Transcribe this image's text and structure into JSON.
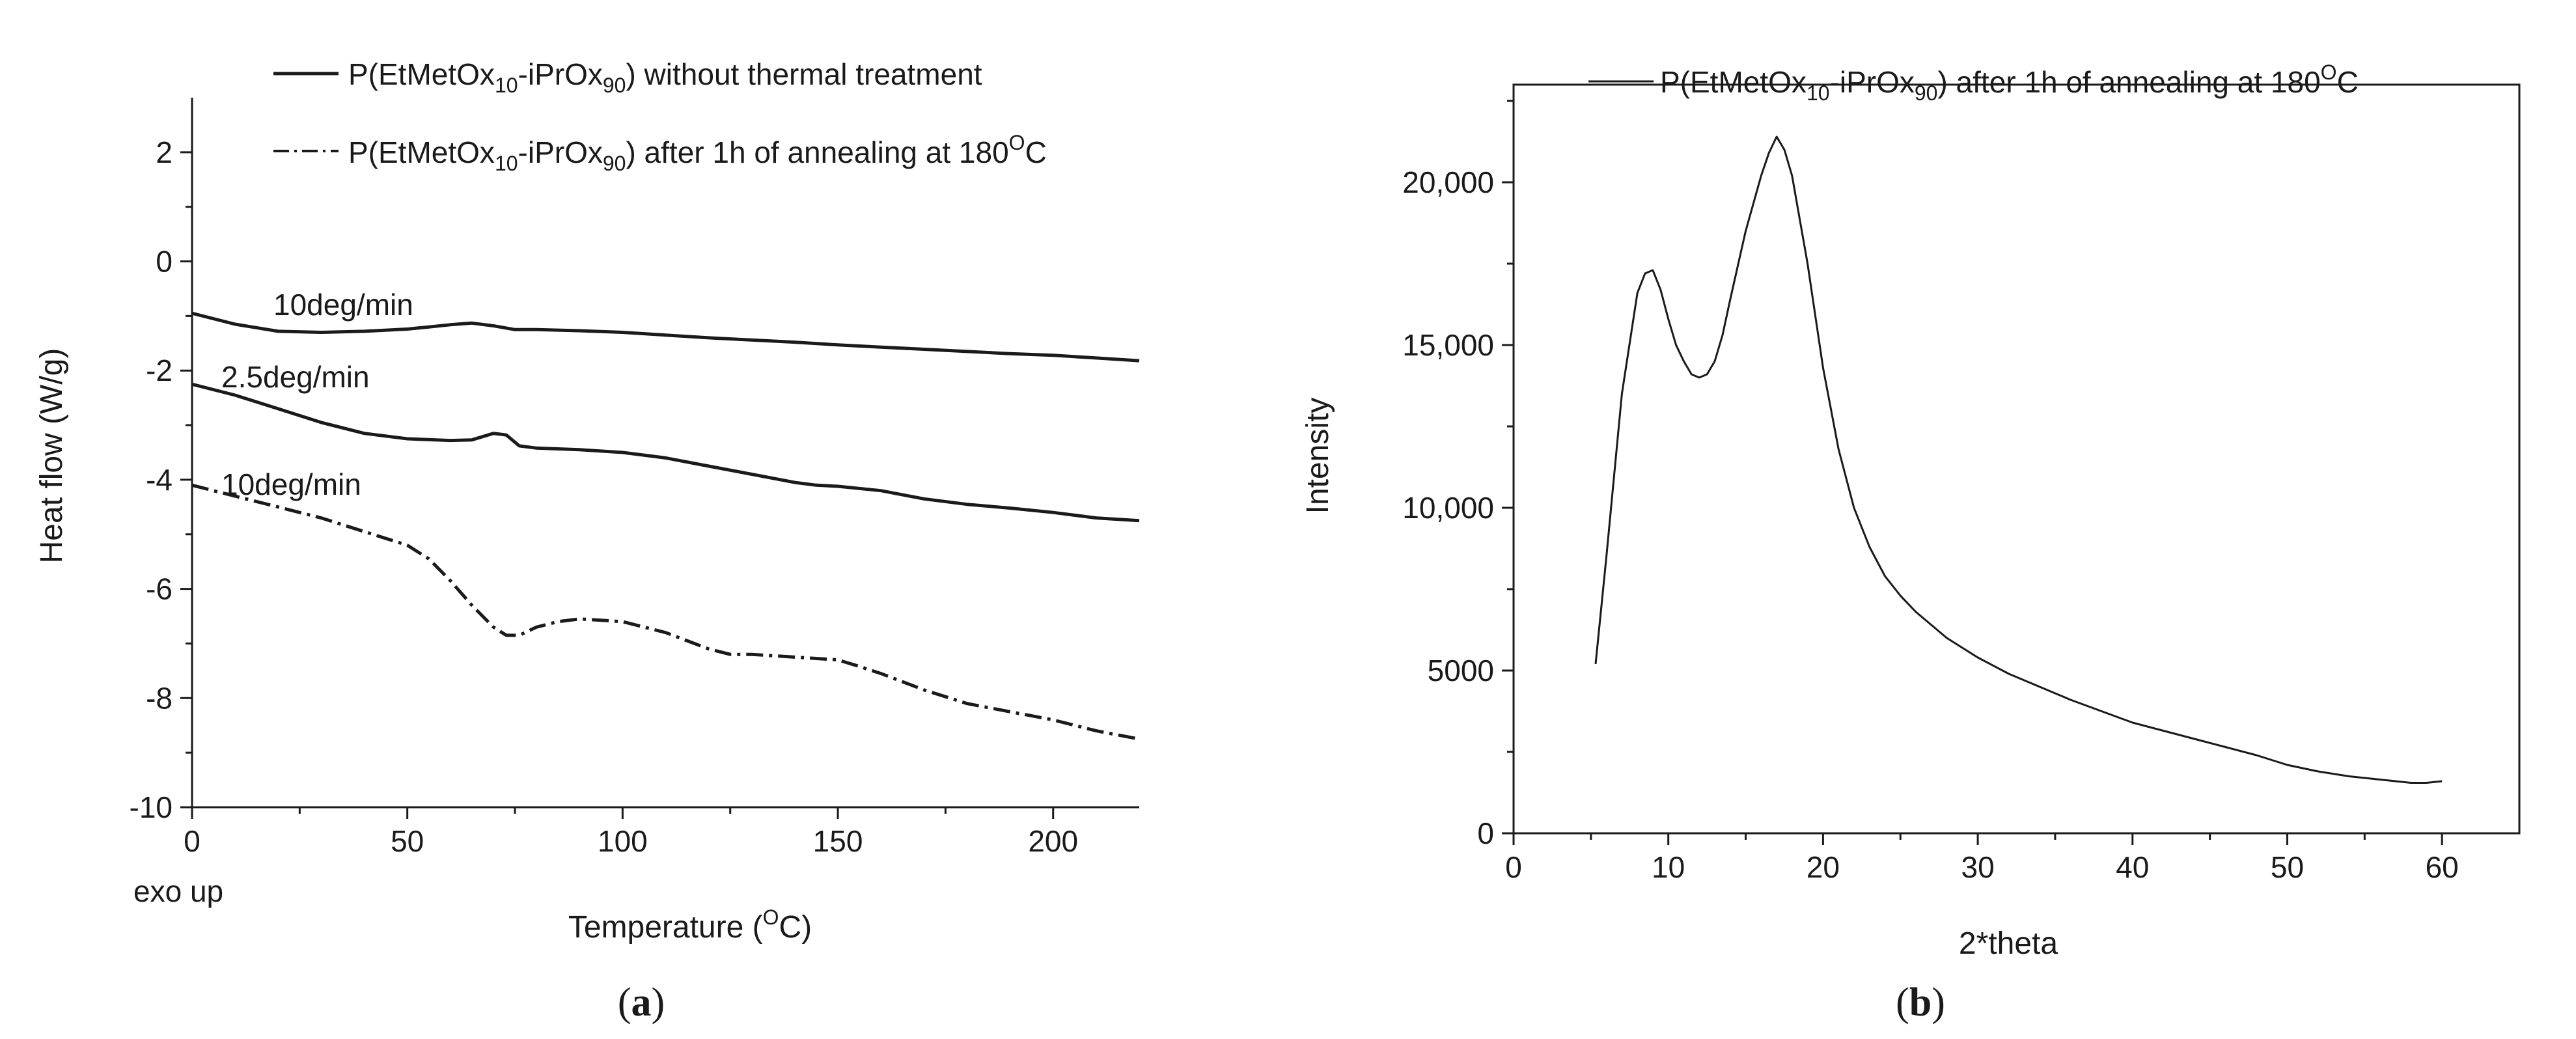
{
  "chart_data": [
    {
      "panel": "(a)",
      "panel_letter": "a",
      "type": "line",
      "xlabel": "Temperature (°C)",
      "xlabel_parts": {
        "pre": "Temperature (",
        "sup": "O",
        "post": "C)"
      },
      "ylabel": "Heat flow (W/g)",
      "xlim": [
        0,
        220
      ],
      "ylim": [
        -10,
        3
      ],
      "xticks": [
        0,
        50,
        100,
        150,
        200
      ],
      "xtick_labels": [
        "0",
        "50",
        "100",
        "150",
        "200"
      ],
      "yticks": [
        -10,
        -8,
        -6,
        -4,
        -2,
        0,
        2
      ],
      "ytick_labels": [
        "-10",
        "-8",
        "-6",
        "-4",
        "-2",
        "0",
        "2"
      ],
      "grid": false,
      "legend_placement": "top",
      "note": "exo up",
      "legend": [
        {
          "style": "solid",
          "pre": "P(EtMetOx",
          "sub1": "10",
          "mid": "-iPrOx",
          "sub2": "90",
          "post": ") without thermal treatment",
          "sup": "",
          "end": ""
        },
        {
          "style": "dashdot",
          "pre": "P(EtMetOx",
          "sub1": "10",
          "mid": "-iPrOx",
          "sub2": "90",
          "post": ") after 1h of annealing at 180",
          "sup": "O",
          "end": "C"
        }
      ],
      "series": [
        {
          "name": "10deg/min (without thermal treatment)",
          "label": "10deg/min",
          "style": "solid",
          "x": [
            0,
            10,
            20,
            30,
            40,
            50,
            55,
            60,
            65,
            70,
            75,
            80,
            90,
            100,
            110,
            120,
            130,
            140,
            150,
            160,
            170,
            180,
            190,
            200,
            210,
            220
          ],
          "y": [
            -0.95,
            -1.15,
            -1.28,
            -1.3,
            -1.28,
            -1.24,
            -1.2,
            -1.16,
            -1.13,
            -1.18,
            -1.25,
            -1.25,
            -1.27,
            -1.3,
            -1.35,
            -1.4,
            -1.44,
            -1.48,
            -1.53,
            -1.57,
            -1.61,
            -1.65,
            -1.69,
            -1.72,
            -1.77,
            -1.82
          ]
        },
        {
          "name": "2.5deg/min (without thermal treatment)",
          "label": "2.5deg/min",
          "style": "solid",
          "x": [
            0,
            10,
            20,
            30,
            40,
            50,
            60,
            65,
            70,
            73,
            76,
            80,
            90,
            100,
            110,
            120,
            130,
            140,
            145,
            150,
            160,
            170,
            180,
            190,
            200,
            210,
            220
          ],
          "y": [
            -2.25,
            -2.45,
            -2.7,
            -2.95,
            -3.15,
            -3.25,
            -3.28,
            -3.27,
            -3.15,
            -3.18,
            -3.38,
            -3.42,
            -3.45,
            -3.5,
            -3.6,
            -3.75,
            -3.9,
            -4.05,
            -4.1,
            -4.12,
            -4.2,
            -4.35,
            -4.45,
            -4.52,
            -4.6,
            -4.7,
            -4.75
          ]
        },
        {
          "name": "10deg/min (after 1h of annealing at 180°C)",
          "label": "10deg/min",
          "style": "dashdot",
          "x": [
            0,
            10,
            20,
            30,
            40,
            50,
            55,
            60,
            65,
            70,
            73,
            76,
            80,
            85,
            90,
            100,
            110,
            120,
            125,
            130,
            140,
            150,
            155,
            160,
            170,
            180,
            190,
            200,
            210,
            220
          ],
          "y": [
            -4.1,
            -4.3,
            -4.5,
            -4.7,
            -4.95,
            -5.2,
            -5.45,
            -5.85,
            -6.3,
            -6.7,
            -6.85,
            -6.85,
            -6.7,
            -6.6,
            -6.55,
            -6.6,
            -6.8,
            -7.1,
            -7.2,
            -7.2,
            -7.25,
            -7.3,
            -7.42,
            -7.55,
            -7.85,
            -8.1,
            -8.25,
            -8.4,
            -8.6,
            -8.75
          ]
        }
      ]
    },
    {
      "panel": "(b)",
      "panel_letter": "b",
      "type": "line",
      "xlabel": "2*theta",
      "ylabel": "Intensity",
      "xlim": [
        0,
        65
      ],
      "ylim": [
        0,
        23000
      ],
      "xticks": [
        0,
        10,
        20,
        30,
        40,
        50,
        60
      ],
      "xtick_labels": [
        "0",
        "10",
        "20",
        "30",
        "40",
        "50",
        "60"
      ],
      "yticks": [
        0,
        5000,
        10000,
        15000,
        20000
      ],
      "ytick_labels": [
        "0",
        "5000",
        "10,000",
        "15,000",
        "20,000"
      ],
      "grid": false,
      "legend_placement": "top",
      "legend": [
        {
          "style": "solid",
          "pre": "P(EtMetOx",
          "sub1": "10",
          "mid": "-iPrOx",
          "sub2": "90",
          "post": ") after 1h of annealing at 180",
          "sup": "O",
          "end": "C"
        }
      ],
      "series": [
        {
          "name": "P(EtMetOx10-iPrOx90) after 1h of annealing at 180°C",
          "style": "solid",
          "x": [
            5.3,
            6,
            7,
            8,
            8.5,
            9,
            9.5,
            10,
            10.5,
            11,
            11.5,
            12,
            12.5,
            13,
            13.5,
            14,
            15,
            16,
            16.5,
            17,
            17.5,
            18,
            19,
            20,
            21,
            22,
            23,
            24,
            25,
            26,
            28,
            30,
            32,
            34,
            36,
            38,
            40,
            42,
            44,
            46,
            48,
            50,
            52,
            54,
            56,
            58,
            59,
            60
          ],
          "y": [
            5200,
            8500,
            13500,
            16600,
            17200,
            17300,
            16700,
            15800,
            15000,
            14500,
            14100,
            14000,
            14100,
            14500,
            15300,
            16400,
            18500,
            20200,
            20900,
            21400,
            21000,
            20200,
            17500,
            14300,
            11800,
            10000,
            8800,
            7900,
            7300,
            6800,
            6000,
            5400,
            4900,
            4500,
            4100,
            3750,
            3400,
            3150,
            2900,
            2650,
            2400,
            2100,
            1900,
            1750,
            1650,
            1550,
            1550,
            1600
          ]
        }
      ]
    }
  ]
}
